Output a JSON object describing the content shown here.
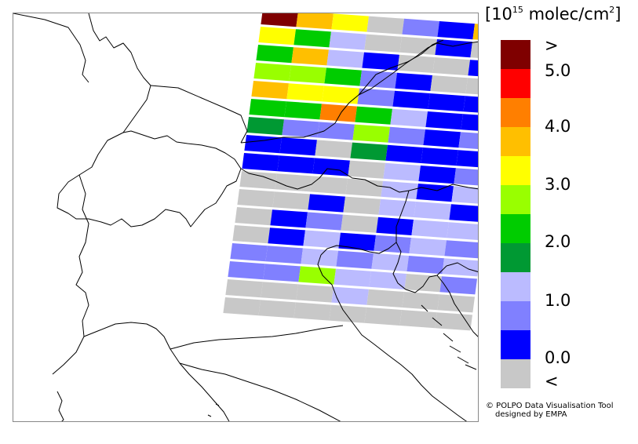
{
  "legend": {
    "unit_prefix": "[10",
    "unit_exponent": "15",
    "unit_main": " molec/cm",
    "unit_square": "2",
    "unit_suffix": "]",
    "labels": [
      ">",
      "5.0",
      "4.0",
      "3.0",
      "2.0",
      "1.0",
      "0.0",
      "<"
    ],
    "classes_top_to_bottom": [
      "#7F0000",
      "#FF0000",
      "#FF7F00",
      "#FFBF00",
      "#FFFF00",
      "#99FF00",
      "#00CC00",
      "#009933",
      "#BBBBFF",
      "#8080FF",
      "#0000FF",
      "#C8C8C8"
    ]
  },
  "credit": {
    "line1": "© POLPO Data Visualisation Tool",
    "line2": "designed by EMPA"
  },
  "map": {
    "pixel_rows": [
      [
        "#7F0000",
        "#FFBF00",
        "#FFFF00",
        "#C8C8C8",
        "#8080FF",
        "#0000FF",
        "#FFBF00"
      ],
      [
        "#FFFF00",
        "#00CC00",
        "#BBBBFF",
        "#C8C8C8",
        "#C8C8C8",
        "#0000FF",
        "#C8C8C8"
      ],
      [
        "#00CC00",
        "#FFBF00",
        "#BBBBFF",
        "#0000FF",
        "#C8C8C8",
        "#C8C8C8",
        "#0000FF"
      ],
      [
        "#99FF00",
        "#99FF00",
        "#00CC00",
        "#8080FF",
        "#0000FF",
        "#C8C8C8",
        "#C8C8C8"
      ],
      [
        "#FFBF00",
        "#FFFF00",
        "#FFFF00",
        "#8080FF",
        "#0000FF",
        "#0000FF",
        "#0000FF"
      ],
      [
        "#00CC00",
        "#00CC00",
        "#FF7F00",
        "#00CC00",
        "#BBBBFF",
        "#0000FF",
        "#0000FF"
      ],
      [
        "#009933",
        "#8080FF",
        "#8080FF",
        "#99FF00",
        "#8080FF",
        "#0000FF",
        "#8080FF"
      ],
      [
        "#0000FF",
        "#0000FF",
        "#C8C8C8",
        "#009933",
        "#0000FF",
        "#0000FF",
        "#0000FF"
      ],
      [
        "#0000FF",
        "#0000FF",
        "#0000FF",
        "#C8C8C8",
        "#BBBBFF",
        "#0000FF",
        "#8080FF"
      ],
      [
        "#C8C8C8",
        "#C8C8C8",
        "#C8C8C8",
        "#C8C8C8",
        "#BBBBFF",
        "#0000FF",
        "#BBBBFF"
      ],
      [
        "#C8C8C8",
        "#C8C8C8",
        "#0000FF",
        "#C8C8C8",
        "#BBBBFF",
        "#BBBBFF",
        "#0000FF"
      ],
      [
        "#C8C8C8",
        "#0000FF",
        "#8080FF",
        "#C8C8C8",
        "#0000FF",
        "#BBBBFF",
        "#BBBBFF"
      ],
      [
        "#C8C8C8",
        "#0000FF",
        "#BBBBFF",
        "#0000FF",
        "#8080FF",
        "#BBBBFF",
        "#8080FF"
      ],
      [
        "#8080FF",
        "#8080FF",
        "#BBBBFF",
        "#8080FF",
        "#BBBBFF",
        "#8080FF",
        "#BBBBFF"
      ],
      [
        "#8080FF",
        "#8080FF",
        "#99FF00",
        "#BBBBFF",
        "#BBBBFF",
        "#C8C8C8",
        "#8080FF"
      ],
      [
        "#C8C8C8",
        "#C8C8C8",
        "#C8C8C8",
        "#BBBBFF",
        "#C8C8C8",
        "#C8C8C8",
        "#C8C8C8"
      ],
      [
        "#C8C8C8",
        "#C8C8C8",
        "#C8C8C8",
        "#C8C8C8",
        "#C8C8C8",
        "#C8C8C8",
        "#C8C8C8"
      ]
    ]
  }
}
